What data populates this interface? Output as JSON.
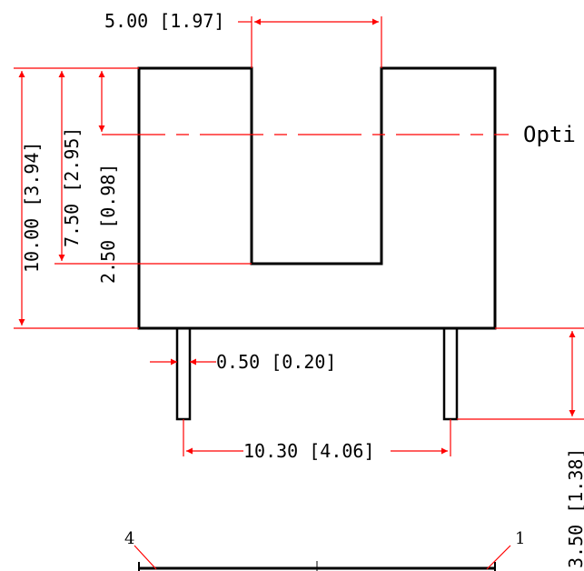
{
  "dimensions": {
    "slot_width": "5.00 [1.97]",
    "body_height": "10.00 [3.94]",
    "slot_depth": "7.50 [2.95]",
    "bottom_thickness": "2.50 [0.98]",
    "pin_width": "0.50 [0.20]",
    "pin_pitch": "10.30 [4.06]",
    "pin_length": "3.50 [1.38]"
  },
  "optical_axis_label": "Opti",
  "pin_labels": {
    "left": "4",
    "right": "1"
  },
  "colors": {
    "outline": "#000000",
    "dimension": "#ff0000",
    "text": "#000000"
  }
}
